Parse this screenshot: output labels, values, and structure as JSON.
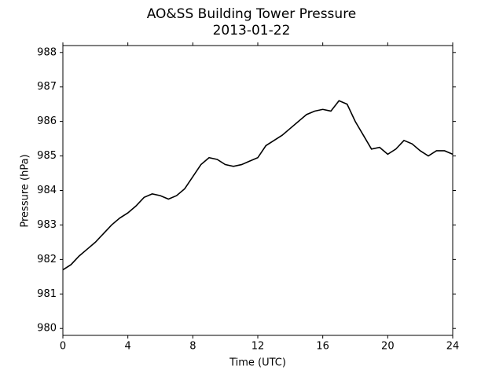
{
  "chart_data": {
    "type": "line",
    "title": "AO&SS Building Tower Pressure",
    "subtitle": "2013-01-22",
    "xlabel": "Time (UTC)",
    "ylabel": "Pressure (hPa)",
    "x": [
      0,
      0.5,
      1,
      1.5,
      2,
      2.5,
      3,
      3.5,
      4,
      4.5,
      5,
      5.5,
      6,
      6.5,
      7,
      7.5,
      8,
      8.5,
      9,
      9.5,
      10,
      10.5,
      11,
      11.5,
      12,
      12.5,
      13,
      13.5,
      14,
      14.5,
      15,
      15.5,
      16,
      16.5,
      17,
      17.5,
      18,
      18.5,
      19,
      19.5,
      20,
      20.5,
      21,
      21.5,
      22,
      22.5,
      23,
      23.5,
      24
    ],
    "series": [
      {
        "name": "Pressure",
        "color": "#000000",
        "values": [
          981.7,
          981.85,
          982.1,
          982.3,
          982.5,
          982.75,
          983.0,
          983.2,
          983.35,
          983.55,
          983.8,
          983.9,
          983.85,
          983.75,
          983.85,
          984.05,
          984.4,
          984.75,
          984.95,
          984.9,
          984.75,
          984.7,
          984.75,
          984.85,
          984.95,
          985.3,
          985.45,
          985.6,
          985.8,
          986.0,
          986.2,
          986.3,
          986.35,
          986.3,
          986.6,
          986.5,
          986.0,
          985.6,
          985.2,
          985.25,
          985.05,
          985.2,
          985.45,
          985.35,
          985.15,
          985.0,
          985.15,
          985.15,
          985.05
        ]
      }
    ],
    "xlim": [
      0,
      24
    ],
    "xticks": [
      0,
      4,
      8,
      12,
      16,
      20,
      24
    ],
    "ylim": [
      979.8,
      988.2
    ],
    "yticks": [
      980,
      981,
      982,
      983,
      984,
      985,
      986,
      987,
      988
    ],
    "grid": false
  }
}
